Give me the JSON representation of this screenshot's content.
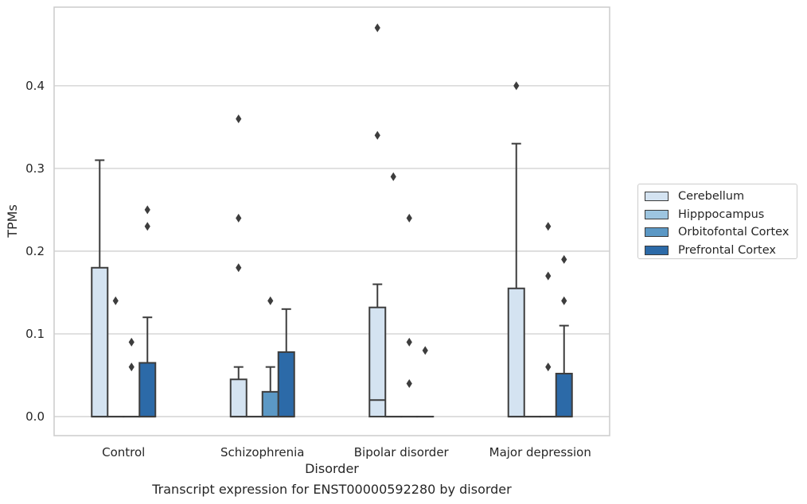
{
  "caption": "Transcript expression for ENST00000592280 by disorder",
  "chart_data": {
    "type": "box",
    "xlabel": "Disorder",
    "ylabel": "TPMs",
    "categories": [
      "Control",
      "Schizophrenia",
      "Bipolar disorder",
      "Major depression"
    ],
    "ylim": [
      -0.023,
      0.495
    ],
    "yticks": [
      0.0,
      0.1,
      0.2,
      0.3,
      0.4
    ],
    "ytick_labels": [
      "0.0",
      "0.1",
      "0.2",
      "0.3",
      "0.4"
    ],
    "grid": true,
    "legend_position": "right",
    "series": [
      {
        "name": "Cerebellum",
        "color": "#d4e3f1",
        "boxes": [
          {
            "q1": 0,
            "median": 0,
            "q3": 0.18,
            "whisker_low": 0,
            "whisker_high": 0.31,
            "fliers": []
          },
          {
            "q1": 0,
            "median": 0,
            "q3": 0.045,
            "whisker_low": 0,
            "whisker_high": 0.06,
            "fliers": [
              0.18,
              0.24,
              0.36
            ]
          },
          {
            "q1": 0,
            "median": 0.02,
            "q3": 0.132,
            "whisker_low": 0,
            "whisker_high": 0.16,
            "fliers": [
              0.34,
              0.47
            ]
          },
          {
            "q1": 0,
            "median": 0,
            "q3": 0.155,
            "whisker_low": 0,
            "whisker_high": 0.33,
            "fliers": [
              0.4
            ]
          }
        ]
      },
      {
        "name": "Hipppocampus",
        "color": "#9dc5e0",
        "boxes": [
          {
            "q1": 0,
            "median": 0,
            "q3": 0,
            "whisker_low": 0,
            "whisker_high": 0,
            "fliers": [
              0.14
            ]
          },
          {
            "q1": 0,
            "median": 0,
            "q3": 0,
            "whisker_low": 0,
            "whisker_high": 0,
            "fliers": []
          },
          {
            "q1": 0,
            "median": 0,
            "q3": 0,
            "whisker_low": 0,
            "whisker_high": 0,
            "fliers": [
              0.29
            ]
          },
          {
            "q1": 0,
            "median": 0,
            "q3": 0,
            "whisker_low": 0,
            "whisker_high": 0,
            "fliers": []
          }
        ]
      },
      {
        "name": "Orbitofontal Cortex",
        "color": "#5b98c5",
        "boxes": [
          {
            "q1": 0,
            "median": 0,
            "q3": 0,
            "whisker_low": 0,
            "whisker_high": 0,
            "fliers": [
              0.06,
              0.09
            ]
          },
          {
            "q1": 0,
            "median": 0,
            "q3": 0.03,
            "whisker_low": 0,
            "whisker_high": 0.06,
            "fliers": [
              0.14
            ]
          },
          {
            "q1": 0,
            "median": 0,
            "q3": 0,
            "whisker_low": 0,
            "whisker_high": 0,
            "fliers": [
              0.04,
              0.09,
              0.24
            ]
          },
          {
            "q1": 0,
            "median": 0,
            "q3": 0,
            "whisker_low": 0,
            "whisker_high": 0,
            "fliers": [
              0.06,
              0.17,
              0.23
            ]
          }
        ]
      },
      {
        "name": "Prefrontal Cortex",
        "color": "#2c6aa8",
        "boxes": [
          {
            "q1": 0,
            "median": 0,
            "q3": 0.065,
            "whisker_low": 0,
            "whisker_high": 0.12,
            "fliers": [
              0.23,
              0.25
            ]
          },
          {
            "q1": 0,
            "median": 0,
            "q3": 0.078,
            "whisker_low": 0,
            "whisker_high": 0.13,
            "fliers": []
          },
          {
            "q1": 0,
            "median": 0,
            "q3": 0,
            "whisker_low": 0,
            "whisker_high": 0,
            "fliers": [
              0.08
            ]
          },
          {
            "q1": 0,
            "median": 0,
            "q3": 0.052,
            "whisker_low": 0,
            "whisker_high": 0.11,
            "fliers": [
              0.14,
              0.19
            ]
          }
        ]
      }
    ]
  }
}
